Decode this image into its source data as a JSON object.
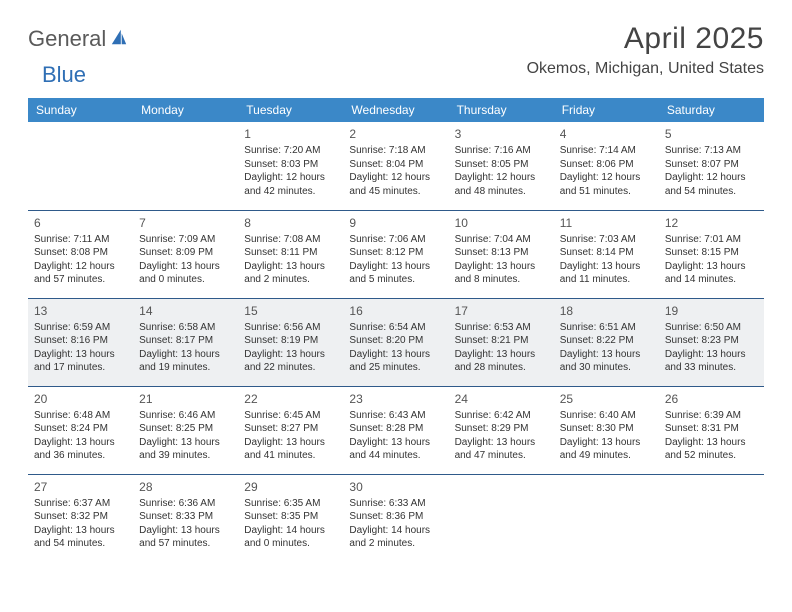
{
  "logo": {
    "text1": "General",
    "text2": "Blue",
    "sail_color": "#2f6fb5"
  },
  "title": "April 2025",
  "location": "Okemos, Michigan, United States",
  "header_bg": "#3b88c8",
  "header_fg": "#ffffff",
  "rule_color": "#2f5a8a",
  "shaded_bg": "#eef0f2",
  "day_headers": [
    "Sunday",
    "Monday",
    "Tuesday",
    "Wednesday",
    "Thursday",
    "Friday",
    "Saturday"
  ],
  "weeks": [
    {
      "shaded": false,
      "days": [
        null,
        null,
        {
          "n": "1",
          "sunrise": "7:20 AM",
          "sunset": "8:03 PM",
          "daylight": "12 hours and 42 minutes."
        },
        {
          "n": "2",
          "sunrise": "7:18 AM",
          "sunset": "8:04 PM",
          "daylight": "12 hours and 45 minutes."
        },
        {
          "n": "3",
          "sunrise": "7:16 AM",
          "sunset": "8:05 PM",
          "daylight": "12 hours and 48 minutes."
        },
        {
          "n": "4",
          "sunrise": "7:14 AM",
          "sunset": "8:06 PM",
          "daylight": "12 hours and 51 minutes."
        },
        {
          "n": "5",
          "sunrise": "7:13 AM",
          "sunset": "8:07 PM",
          "daylight": "12 hours and 54 minutes."
        }
      ]
    },
    {
      "shaded": false,
      "days": [
        {
          "n": "6",
          "sunrise": "7:11 AM",
          "sunset": "8:08 PM",
          "daylight": "12 hours and 57 minutes."
        },
        {
          "n": "7",
          "sunrise": "7:09 AM",
          "sunset": "8:09 PM",
          "daylight": "13 hours and 0 minutes."
        },
        {
          "n": "8",
          "sunrise": "7:08 AM",
          "sunset": "8:11 PM",
          "daylight": "13 hours and 2 minutes."
        },
        {
          "n": "9",
          "sunrise": "7:06 AM",
          "sunset": "8:12 PM",
          "daylight": "13 hours and 5 minutes."
        },
        {
          "n": "10",
          "sunrise": "7:04 AM",
          "sunset": "8:13 PM",
          "daylight": "13 hours and 8 minutes."
        },
        {
          "n": "11",
          "sunrise": "7:03 AM",
          "sunset": "8:14 PM",
          "daylight": "13 hours and 11 minutes."
        },
        {
          "n": "12",
          "sunrise": "7:01 AM",
          "sunset": "8:15 PM",
          "daylight": "13 hours and 14 minutes."
        }
      ]
    },
    {
      "shaded": true,
      "days": [
        {
          "n": "13",
          "sunrise": "6:59 AM",
          "sunset": "8:16 PM",
          "daylight": "13 hours and 17 minutes."
        },
        {
          "n": "14",
          "sunrise": "6:58 AM",
          "sunset": "8:17 PM",
          "daylight": "13 hours and 19 minutes."
        },
        {
          "n": "15",
          "sunrise": "6:56 AM",
          "sunset": "8:19 PM",
          "daylight": "13 hours and 22 minutes."
        },
        {
          "n": "16",
          "sunrise": "6:54 AM",
          "sunset": "8:20 PM",
          "daylight": "13 hours and 25 minutes."
        },
        {
          "n": "17",
          "sunrise": "6:53 AM",
          "sunset": "8:21 PM",
          "daylight": "13 hours and 28 minutes."
        },
        {
          "n": "18",
          "sunrise": "6:51 AM",
          "sunset": "8:22 PM",
          "daylight": "13 hours and 30 minutes."
        },
        {
          "n": "19",
          "sunrise": "6:50 AM",
          "sunset": "8:23 PM",
          "daylight": "13 hours and 33 minutes."
        }
      ]
    },
    {
      "shaded": false,
      "days": [
        {
          "n": "20",
          "sunrise": "6:48 AM",
          "sunset": "8:24 PM",
          "daylight": "13 hours and 36 minutes."
        },
        {
          "n": "21",
          "sunrise": "6:46 AM",
          "sunset": "8:25 PM",
          "daylight": "13 hours and 39 minutes."
        },
        {
          "n": "22",
          "sunrise": "6:45 AM",
          "sunset": "8:27 PM",
          "daylight": "13 hours and 41 minutes."
        },
        {
          "n": "23",
          "sunrise": "6:43 AM",
          "sunset": "8:28 PM",
          "daylight": "13 hours and 44 minutes."
        },
        {
          "n": "24",
          "sunrise": "6:42 AM",
          "sunset": "8:29 PM",
          "daylight": "13 hours and 47 minutes."
        },
        {
          "n": "25",
          "sunrise": "6:40 AM",
          "sunset": "8:30 PM",
          "daylight": "13 hours and 49 minutes."
        },
        {
          "n": "26",
          "sunrise": "6:39 AM",
          "sunset": "8:31 PM",
          "daylight": "13 hours and 52 minutes."
        }
      ]
    },
    {
      "shaded": false,
      "days": [
        {
          "n": "27",
          "sunrise": "6:37 AM",
          "sunset": "8:32 PM",
          "daylight": "13 hours and 54 minutes."
        },
        {
          "n": "28",
          "sunrise": "6:36 AM",
          "sunset": "8:33 PM",
          "daylight": "13 hours and 57 minutes."
        },
        {
          "n": "29",
          "sunrise": "6:35 AM",
          "sunset": "8:35 PM",
          "daylight": "14 hours and 0 minutes."
        },
        {
          "n": "30",
          "sunrise": "6:33 AM",
          "sunset": "8:36 PM",
          "daylight": "14 hours and 2 minutes."
        },
        null,
        null,
        null
      ]
    }
  ],
  "labels": {
    "sunrise_prefix": "Sunrise: ",
    "sunset_prefix": "Sunset: ",
    "daylight_prefix": "Daylight: "
  }
}
